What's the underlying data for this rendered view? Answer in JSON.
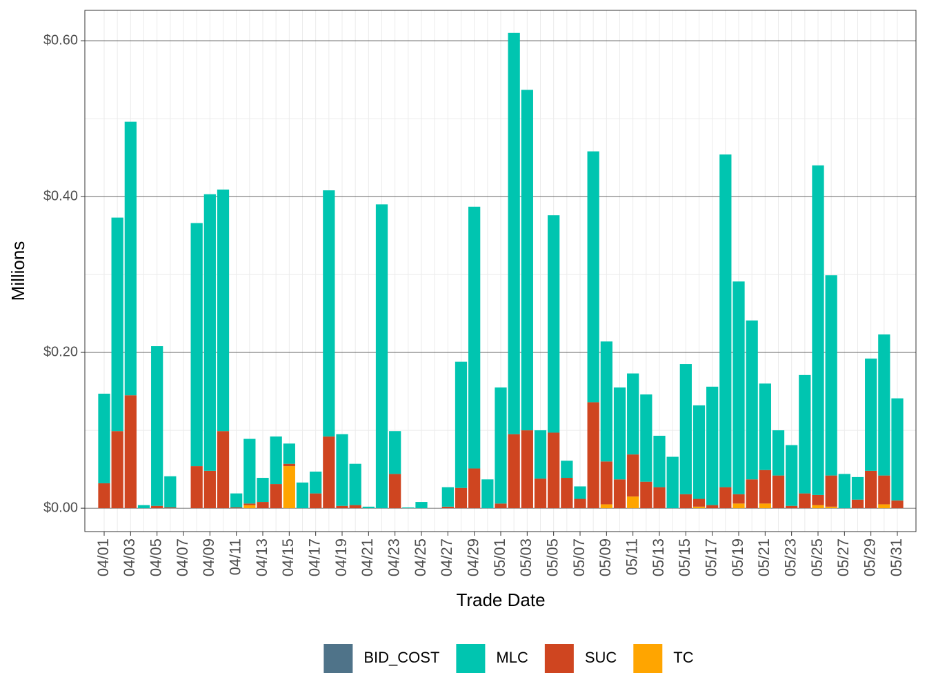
{
  "chart_data": {
    "type": "bar",
    "stacked": true,
    "x_label": "Trade Date",
    "y_label": "Millions",
    "categories": [
      "04/01",
      null,
      "04/03",
      null,
      "04/05",
      null,
      "04/07",
      null,
      "04/09",
      null,
      "04/11",
      null,
      "04/13",
      null,
      "04/15",
      null,
      "04/17",
      null,
      "04/19",
      null,
      "04/21",
      null,
      "04/23",
      null,
      "04/25",
      null,
      "04/27",
      null,
      "04/29",
      null,
      "05/01",
      null,
      "05/03",
      null,
      "05/05",
      null,
      "05/07",
      null,
      "05/09",
      null,
      "05/11",
      null,
      "05/13",
      null,
      "05/15",
      null,
      "05/17",
      null,
      "05/19",
      null,
      "05/21",
      null,
      "05/23",
      null,
      "05/25",
      null,
      "05/27",
      null,
      "05/29",
      null,
      "05/31"
    ],
    "series": [
      {
        "name": "BID_COST",
        "color": "#4f7389",
        "values": [
          0,
          0,
          0,
          0,
          0,
          0,
          0,
          0,
          0,
          0,
          0,
          0,
          0,
          0,
          0,
          0,
          0,
          0,
          0,
          0,
          0,
          0,
          0,
          0,
          0,
          0,
          0,
          0,
          0,
          0,
          0,
          0,
          0,
          0,
          0,
          0,
          0,
          0,
          0,
          0,
          0,
          0,
          0,
          0,
          0,
          0,
          0,
          0,
          0,
          0,
          0,
          0,
          0,
          0,
          0,
          0,
          0,
          0,
          0,
          0,
          0
        ]
      },
      {
        "name": "MLC",
        "color": "#00c5b0",
        "values": [
          0.115,
          0.274,
          0.351,
          0.004,
          0.205,
          0.04,
          0,
          0.312,
          0.355,
          0.31,
          0.018,
          0.083,
          0.031,
          0.061,
          0.026,
          0.033,
          0.028,
          0.316,
          0.092,
          0.053,
          0.002,
          0.39,
          0.055,
          0.001,
          0.008,
          0,
          0.025,
          0.162,
          0.336,
          0.037,
          0.149,
          0.515,
          0.437,
          0.062,
          0.279,
          0.022,
          0.016,
          0.322,
          0.154,
          0.118,
          0.104,
          0.112,
          0.066,
          0.066,
          0.167,
          0.12,
          0.152,
          0.427,
          0.273,
          0.204,
          0.111,
          0.058,
          0.078,
          0.152,
          0.423,
          0.257,
          0.044,
          0.029,
          0.144,
          0.181,
          0.131
        ]
      },
      {
        "name": "SUC",
        "color": "#cf4520",
        "values": [
          0.032,
          0.099,
          0.145,
          0,
          0.003,
          0.001,
          0,
          0.054,
          0.048,
          0.099,
          0.001,
          0.002,
          0.008,
          0.031,
          0.003,
          0,
          0.019,
          0.092,
          0.003,
          0.004,
          0,
          0,
          0.044,
          0,
          0,
          0,
          0.002,
          0.026,
          0.051,
          0,
          0.006,
          0.095,
          0.1,
          0.038,
          0.097,
          0.039,
          0.012,
          0.136,
          0.055,
          0.037,
          0.054,
          0.034,
          0.027,
          0,
          0.018,
          0.01,
          0.004,
          0.027,
          0.012,
          0.037,
          0.043,
          0.042,
          0.003,
          0.019,
          0.013,
          0.04,
          0,
          0.011,
          0.048,
          0.037,
          0.01
        ]
      },
      {
        "name": "TC",
        "color": "#ffa500",
        "values": [
          0,
          0,
          0,
          0,
          0,
          0,
          0,
          0,
          0,
          0,
          0,
          0.004,
          0,
          0,
          0.054,
          0,
          0,
          0,
          0,
          0,
          0,
          0,
          0,
          0,
          0,
          0,
          0,
          0,
          0,
          0,
          0,
          0,
          0,
          0,
          0,
          0,
          0,
          0,
          0.005,
          0,
          0.015,
          0,
          0,
          0,
          0,
          0.002,
          0,
          0,
          0.006,
          0,
          0.006,
          0,
          0,
          0,
          0.004,
          0.002,
          0,
          0,
          0,
          0.005,
          0
        ]
      }
    ],
    "ylim": [
      -0.03,
      0.639
    ],
    "yticks": [
      {
        "value": 0,
        "label": "$0.00"
      },
      {
        "value": 0.2,
        "label": "$0.20"
      },
      {
        "value": 0.4,
        "label": "$0.40"
      },
      {
        "value": 0.6,
        "label": "$0.60"
      }
    ],
    "minor_yticks": [
      0.1,
      0.3,
      0.5
    ],
    "grid": true,
    "legend": "bottom"
  }
}
